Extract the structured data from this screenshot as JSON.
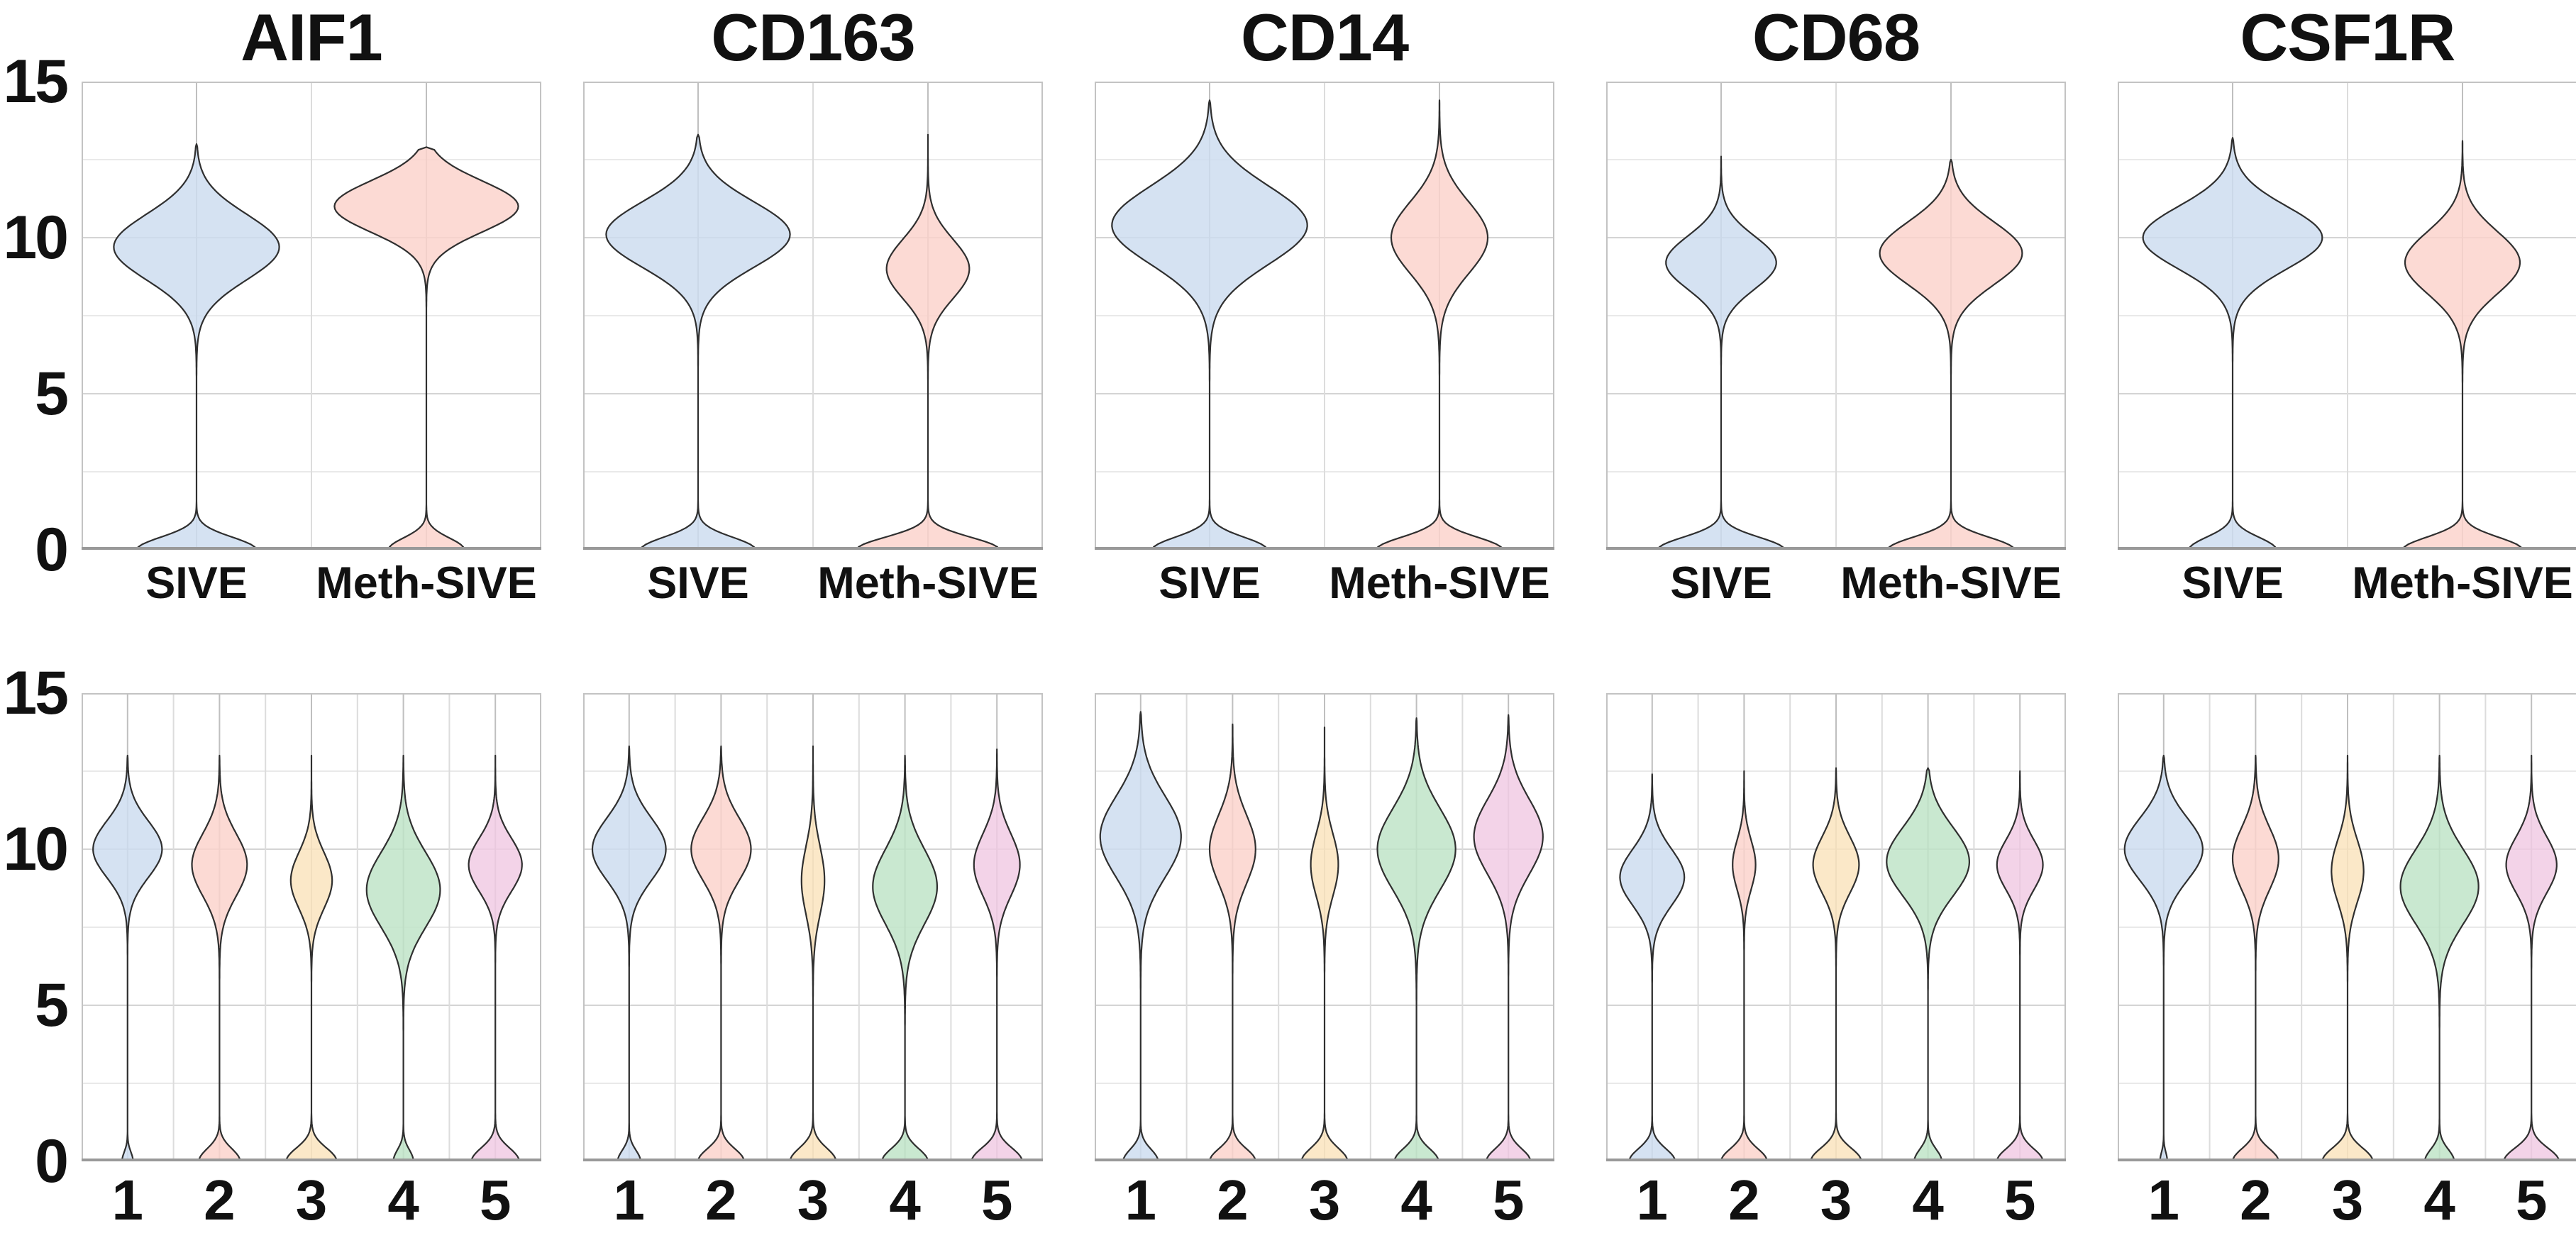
{
  "figure": {
    "background": "#ffffff",
    "text_color": "#111111"
  },
  "style": {
    "violin_outline": "#2f2f2f",
    "violin_fill_opacity": 0.84,
    "grid_major": "#d4d4d4",
    "grid_minor": "#e9e9e9",
    "grid_vertical_center": "#bfbfbf",
    "grid_vertical_boundary": "#dcdcdc",
    "panel_border": "#c3c3c3",
    "axis_line": "#999999"
  },
  "chart_data": {
    "type": "violin",
    "ylim": [
      0,
      15
    ],
    "yticks_major": [
      15,
      10,
      5,
      0
    ],
    "gridlines_major_y": [
      5,
      10
    ],
    "gridlines_minor_y": [
      2.5,
      7.5,
      12.5
    ],
    "genes": [
      "AIF1",
      "CD163",
      "CD14",
      "CD68",
      "CSF1R"
    ],
    "condition_colors": {
      "SIVE": "#cdddef",
      "Meth-SIVE": "#fbd3cc"
    },
    "cluster_colors": {
      "1": "#cdddef",
      "2": "#fbd3cc",
      "3": "#fae3bd",
      "4": "#bfe4c7",
      "5": "#f1cbe4"
    },
    "rows": [
      {
        "name": "expression-by-condition",
        "categories": [
          "SIVE",
          "Meth-SIVE"
        ],
        "label_size": "sm",
        "panels": [
          {
            "gene": "AIF1",
            "violins": [
              {
                "category": "SIVE",
                "color": "#cdddef",
                "max": 13.0,
                "peak": 9.7,
                "sd": 1.05,
                "width": 0.72,
                "zero_width": 0.52,
                "zero_sd": 0.4
              },
              {
                "category": "Meth-SIVE",
                "color": "#fbd3cc",
                "max": 12.9,
                "peak": 11.0,
                "sd": 0.82,
                "width": 0.8,
                "zero_width": 0.33,
                "zero_sd": 0.38
              }
            ]
          },
          {
            "gene": "CD163",
            "violins": [
              {
                "category": "SIVE",
                "color": "#cdddef",
                "max": 13.3,
                "peak": 10.1,
                "sd": 1.05,
                "width": 0.8,
                "zero_width": 0.5,
                "zero_sd": 0.4
              },
              {
                "category": "Meth-SIVE",
                "color": "#fbd3cc",
                "max": 13.3,
                "peak": 9.0,
                "sd": 0.95,
                "width": 0.36,
                "zero_width": 0.62,
                "zero_sd": 0.4
              }
            ]
          },
          {
            "gene": "CD14",
            "violins": [
              {
                "category": "SIVE",
                "color": "#cdddef",
                "max": 14.4,
                "peak": 10.4,
                "sd": 1.25,
                "width": 0.85,
                "zero_width": 0.5,
                "zero_sd": 0.4
              },
              {
                "category": "Meth-SIVE",
                "color": "#fbd3cc",
                "max": 14.4,
                "peak": 10.0,
                "sd": 1.15,
                "width": 0.42,
                "zero_width": 0.55,
                "zero_sd": 0.4
              }
            ]
          },
          {
            "gene": "CD68",
            "violins": [
              {
                "category": "SIVE",
                "color": "#cdddef",
                "max": 12.6,
                "peak": 9.2,
                "sd": 0.85,
                "width": 0.48,
                "zero_width": 0.55,
                "zero_sd": 0.4
              },
              {
                "category": "Meth-SIVE",
                "color": "#fbd3cc",
                "max": 12.5,
                "peak": 9.5,
                "sd": 1.0,
                "width": 0.62,
                "zero_width": 0.55,
                "zero_sd": 0.4
              }
            ]
          },
          {
            "gene": "CSF1R",
            "violins": [
              {
                "category": "SIVE",
                "color": "#cdddef",
                "max": 13.2,
                "peak": 10.0,
                "sd": 1.0,
                "width": 0.78,
                "zero_width": 0.38,
                "zero_sd": 0.4
              },
              {
                "category": "Meth-SIVE",
                "color": "#fbd3cc",
                "max": 13.1,
                "peak": 9.2,
                "sd": 1.0,
                "width": 0.5,
                "zero_width": 0.52,
                "zero_sd": 0.4
              }
            ]
          }
        ]
      },
      {
        "name": "expression-by-cluster",
        "categories": [
          "1",
          "2",
          "3",
          "4",
          "5"
        ],
        "label_size": "lg",
        "panels": [
          {
            "gene": "AIF1",
            "violins": [
              {
                "category": "1",
                "color": "#cdddef",
                "max": 13.0,
                "peak": 10.0,
                "sd": 0.9,
                "width": 0.75,
                "zero_width": 0.12,
                "zero_sd": 0.3
              },
              {
                "category": "2",
                "color": "#fbd3cc",
                "max": 13.0,
                "peak": 9.5,
                "sd": 1.0,
                "width": 0.6,
                "zero_width": 0.45,
                "zero_sd": 0.4
              },
              {
                "category": "3",
                "color": "#fae3bd",
                "max": 13.0,
                "peak": 9.0,
                "sd": 0.9,
                "width": 0.45,
                "zero_width": 0.55,
                "zero_sd": 0.42
              },
              {
                "category": "4",
                "color": "#bfe4c7",
                "max": 13.0,
                "peak": 8.7,
                "sd": 1.2,
                "width": 0.8,
                "zero_width": 0.22,
                "zero_sd": 0.36
              },
              {
                "category": "5",
                "color": "#f1cbe4",
                "max": 13.0,
                "peak": 9.5,
                "sd": 0.85,
                "width": 0.58,
                "zero_width": 0.52,
                "zero_sd": 0.42
              }
            ]
          },
          {
            "gene": "CD163",
            "violins": [
              {
                "category": "1",
                "color": "#cdddef",
                "max": 13.3,
                "peak": 10.0,
                "sd": 1.0,
                "width": 0.8,
                "zero_width": 0.25,
                "zero_sd": 0.35
              },
              {
                "category": "2",
                "color": "#fbd3cc",
                "max": 13.3,
                "peak": 10.0,
                "sd": 1.0,
                "width": 0.65,
                "zero_width": 0.5,
                "zero_sd": 0.4
              },
              {
                "category": "3",
                "color": "#fae3bd",
                "max": 13.3,
                "peak": 9.0,
                "sd": 1.1,
                "width": 0.25,
                "zero_width": 0.5,
                "zero_sd": 0.42
              },
              {
                "category": "4",
                "color": "#bfe4c7",
                "max": 13.0,
                "peak": 8.8,
                "sd": 1.2,
                "width": 0.7,
                "zero_width": 0.5,
                "zero_sd": 0.4
              },
              {
                "category": "5",
                "color": "#f1cbe4",
                "max": 13.2,
                "peak": 9.5,
                "sd": 1.0,
                "width": 0.5,
                "zero_width": 0.55,
                "zero_sd": 0.42
              }
            ]
          },
          {
            "gene": "CD14",
            "violins": [
              {
                "category": "1",
                "color": "#cdddef",
                "max": 14.4,
                "peak": 10.4,
                "sd": 1.3,
                "width": 0.88,
                "zero_width": 0.38,
                "zero_sd": 0.38
              },
              {
                "category": "2",
                "color": "#fbd3cc",
                "max": 14.0,
                "peak": 10.0,
                "sd": 1.1,
                "width": 0.5,
                "zero_width": 0.5,
                "zero_sd": 0.4
              },
              {
                "category": "3",
                "color": "#fae3bd",
                "max": 13.9,
                "peak": 9.5,
                "sd": 1.0,
                "width": 0.3,
                "zero_width": 0.5,
                "zero_sd": 0.42
              },
              {
                "category": "4",
                "color": "#bfe4c7",
                "max": 14.2,
                "peak": 10.0,
                "sd": 1.3,
                "width": 0.85,
                "zero_width": 0.48,
                "zero_sd": 0.4
              },
              {
                "category": "5",
                "color": "#f1cbe4",
                "max": 14.3,
                "peak": 10.4,
                "sd": 1.2,
                "width": 0.75,
                "zero_width": 0.48,
                "zero_sd": 0.4
              }
            ]
          },
          {
            "gene": "CD68",
            "violins": [
              {
                "category": "1",
                "color": "#cdddef",
                "max": 12.4,
                "peak": 9.1,
                "sd": 0.9,
                "width": 0.7,
                "zero_width": 0.5,
                "zero_sd": 0.4
              },
              {
                "category": "2",
                "color": "#fbd3cc",
                "max": 12.5,
                "peak": 9.5,
                "sd": 0.8,
                "width": 0.25,
                "zero_width": 0.5,
                "zero_sd": 0.4
              },
              {
                "category": "3",
                "color": "#fae3bd",
                "max": 12.6,
                "peak": 9.5,
                "sd": 0.9,
                "width": 0.5,
                "zero_width": 0.55,
                "zero_sd": 0.42
              },
              {
                "category": "4",
                "color": "#bfe4c7",
                "max": 12.6,
                "peak": 9.6,
                "sd": 1.1,
                "width": 0.9,
                "zero_width": 0.3,
                "zero_sd": 0.38
              },
              {
                "category": "5",
                "color": "#f1cbe4",
                "max": 12.5,
                "peak": 9.5,
                "sd": 0.8,
                "width": 0.5,
                "zero_width": 0.5,
                "zero_sd": 0.4
              }
            ]
          },
          {
            "gene": "CSF1R",
            "violins": [
              {
                "category": "1",
                "color": "#cdddef",
                "max": 13.0,
                "peak": 10.0,
                "sd": 1.0,
                "width": 0.85,
                "zero_width": 0.08,
                "zero_sd": 0.28
              },
              {
                "category": "2",
                "color": "#fbd3cc",
                "max": 13.0,
                "peak": 9.7,
                "sd": 1.0,
                "width": 0.5,
                "zero_width": 0.5,
                "zero_sd": 0.4
              },
              {
                "category": "3",
                "color": "#fae3bd",
                "max": 13.0,
                "peak": 9.3,
                "sd": 1.0,
                "width": 0.35,
                "zero_width": 0.55,
                "zero_sd": 0.42
              },
              {
                "category": "4",
                "color": "#bfe4c7",
                "max": 13.0,
                "peak": 8.8,
                "sd": 1.2,
                "width": 0.85,
                "zero_width": 0.32,
                "zero_sd": 0.38
              },
              {
                "category": "5",
                "color": "#f1cbe4",
                "max": 13.0,
                "peak": 9.5,
                "sd": 0.9,
                "width": 0.55,
                "zero_width": 0.6,
                "zero_sd": 0.42
              }
            ]
          }
        ]
      }
    ]
  }
}
